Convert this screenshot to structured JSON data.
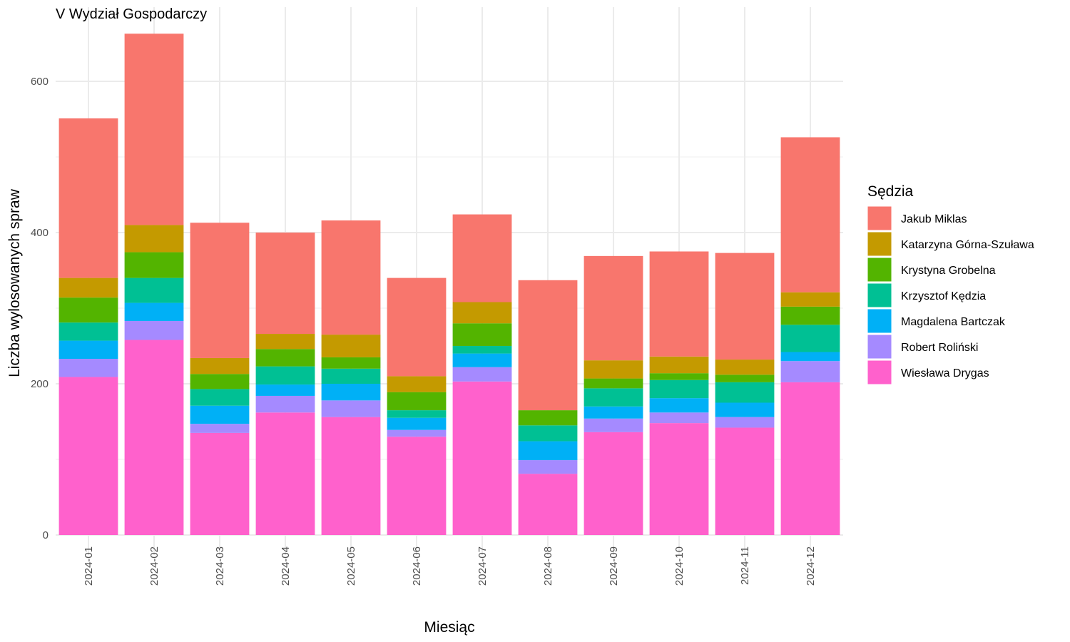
{
  "chart_data": {
    "type": "bar",
    "stacked": true,
    "title": "V Wydział Gospodarczy",
    "xlabel": "Miesiąc",
    "ylabel": "Liczba wylosowanych spraw",
    "ylim": [
      0,
      700
    ],
    "yticks": [
      0,
      200,
      400,
      600
    ],
    "grid": true,
    "legend_title": "Sędzia",
    "legend_position": "right",
    "categories": [
      "2024-01",
      "2024-02",
      "2024-03",
      "2024-04",
      "2024-05",
      "2024-06",
      "2024-07",
      "2024-08",
      "2024-09",
      "2024-10",
      "2024-11",
      "2024-12"
    ],
    "series": [
      {
        "name": "Wiesława Drygas",
        "color": "#FF61CC",
        "values": [
          209,
          258,
          135,
          162,
          156,
          130,
          203,
          81,
          136,
          148,
          142,
          202
        ]
      },
      {
        "name": "Robert Roliński",
        "color": "#A58AFF",
        "values": [
          24,
          25,
          12,
          22,
          22,
          9,
          19,
          18,
          18,
          14,
          14,
          28
        ]
      },
      {
        "name": "Magdalena Bartczak",
        "color": "#00B0F6",
        "values": [
          24,
          24,
          24,
          15,
          22,
          16,
          18,
          25,
          16,
          19,
          19,
          12
        ]
      },
      {
        "name": "Krzysztof Kędzia",
        "color": "#00C094",
        "values": [
          24,
          33,
          22,
          24,
          20,
          10,
          10,
          21,
          24,
          24,
          27,
          36
        ]
      },
      {
        "name": "Krystyna Grobelna",
        "color": "#53B400",
        "values": [
          33,
          34,
          20,
          23,
          15,
          24,
          30,
          20,
          13,
          9,
          10,
          24
        ]
      },
      {
        "name": "Katarzyna Górna-Szuława",
        "color": "#C49A00",
        "values": [
          26,
          36,
          21,
          20,
          30,
          21,
          28,
          0,
          24,
          22,
          20,
          19
        ]
      },
      {
        "name": "Jakub Miklas",
        "color": "#F8766D",
        "values": [
          211,
          253,
          179,
          134,
          151,
          130,
          116,
          172,
          138,
          139,
          141,
          205
        ]
      }
    ]
  }
}
